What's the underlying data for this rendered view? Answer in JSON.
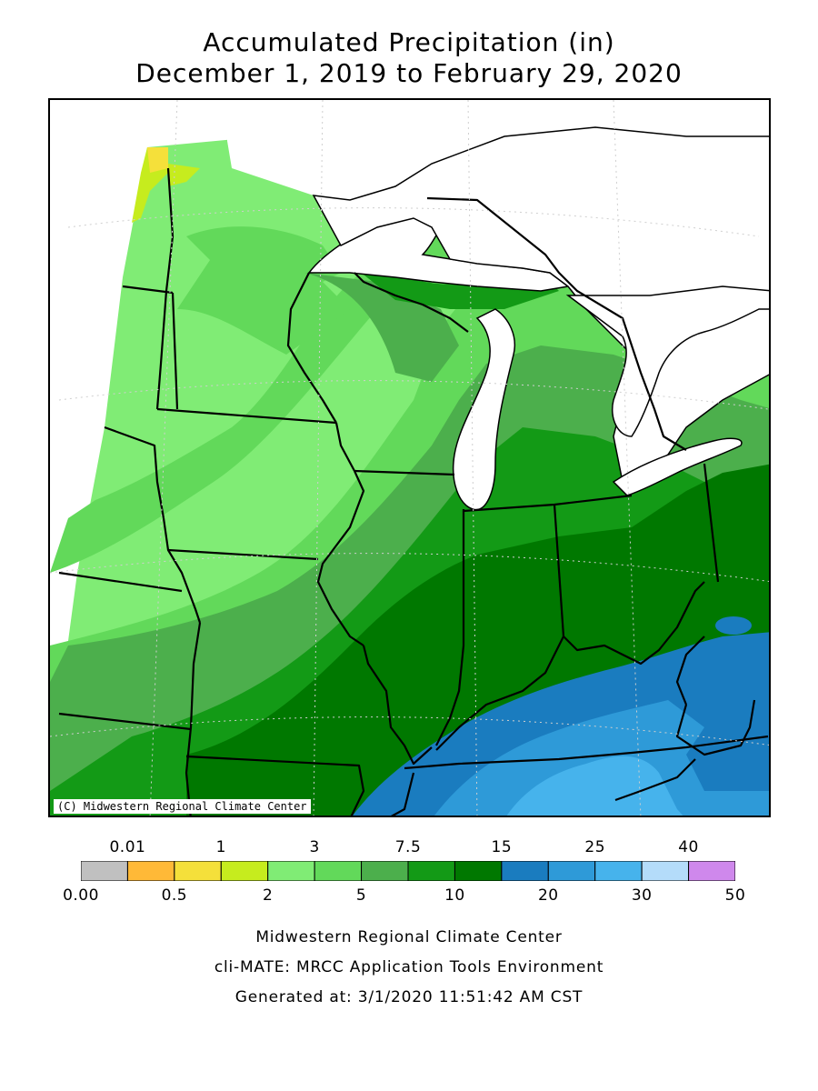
{
  "title": {
    "line1": "Accumulated Precipitation (in)",
    "line2": "December 1, 2019 to February 29, 2020"
  },
  "map": {
    "copyright": "(C) Midwestern Regional Climate Center"
  },
  "legend": {
    "colors": [
      "#c0c0c0",
      "#ffb937",
      "#f5e03a",
      "#c6ec1e",
      "#80ec75",
      "#62d95a",
      "#4caf4c",
      "#139a16",
      "#007800",
      "#1a7cbf",
      "#2e9ad8",
      "#46b3ec",
      "#b4dcfa",
      "#cf88ec"
    ],
    "top_labels": [
      "0.01",
      "1",
      "3",
      "7.5",
      "15",
      "25",
      "40"
    ],
    "bottom_labels": [
      "0.00",
      "0.5",
      "2",
      "5",
      "10",
      "20",
      "30",
      "50"
    ]
  },
  "footer": {
    "line1": "Midwestern Regional Climate Center",
    "line2": "cli-MATE: MRCC Application Tools Environment",
    "line3": "Generated at: 3/1/2020 11:51:42 AM CST"
  }
}
